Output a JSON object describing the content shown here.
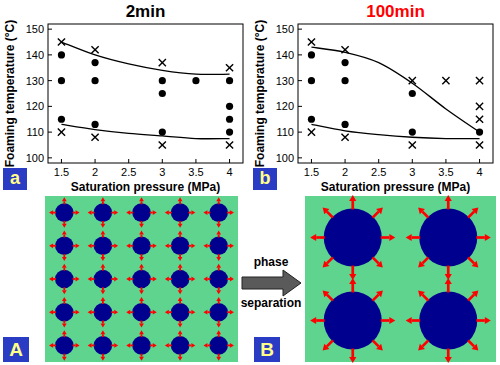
{
  "chart_data": [
    {
      "type": "scatter",
      "title": "2min",
      "panel_label": "a",
      "x_label": "Saturation pressure (MPa)",
      "y_label": "Foaming temperature (°C)",
      "xlim": [
        1.3,
        4.2
      ],
      "ylim": [
        98,
        152
      ],
      "xticks": [
        1.5,
        2,
        2.5,
        3,
        3.5,
        4
      ],
      "yticks": [
        100,
        110,
        120,
        130,
        140,
        150
      ],
      "series": [
        {
          "marker": "circle",
          "color": "#000000",
          "x": [
            1.5,
            1.5,
            1.5,
            2,
            2,
            2,
            3,
            3,
            3,
            3.5,
            4,
            4,
            4,
            4
          ],
          "values": [
            140,
            130,
            115,
            137,
            130,
            113,
            130,
            125,
            110,
            130,
            130,
            120,
            115,
            110
          ]
        },
        {
          "marker": "cross",
          "color": "#000000",
          "x": [
            1.5,
            1.5,
            2,
            2,
            3,
            3,
            4,
            4
          ],
          "values": [
            145,
            110,
            142,
            108,
            137,
            105,
            135,
            105
          ]
        },
        {
          "type": "line",
          "line_style": "solid",
          "color": "#000000",
          "x": [
            1.5,
            2,
            2.5,
            3,
            3.5,
            4
          ],
          "values": [
            145,
            140,
            136.5,
            134,
            132.5,
            132.5
          ]
        },
        {
          "type": "line",
          "line_style": "solid",
          "color": "#000000",
          "x": [
            1.5,
            2,
            2.5,
            3,
            3.5,
            4
          ],
          "values": [
            113,
            111,
            109.5,
            108.5,
            107.5,
            107.5
          ]
        }
      ]
    },
    {
      "type": "scatter",
      "title": "100min",
      "panel_label": "b",
      "x_label": "Saturation pressure (MPa)",
      "y_label": "Foaming temperature (°C)",
      "xlim": [
        1.3,
        4.2
      ],
      "ylim": [
        98,
        152
      ],
      "xticks": [
        1.5,
        2,
        2.5,
        3,
        3.5,
        4
      ],
      "yticks": [
        100,
        110,
        120,
        130,
        140,
        150
      ],
      "series": [
        {
          "marker": "circle",
          "color": "#000000",
          "x": [
            1.5,
            1.5,
            1.5,
            2,
            2,
            2,
            3,
            3,
            4
          ],
          "values": [
            140,
            130,
            115,
            137,
            130,
            113,
            125,
            110,
            110
          ]
        },
        {
          "marker": "cross",
          "color": "#000000",
          "x": [
            1.5,
            1.5,
            2,
            2,
            3,
            3,
            3.5,
            4,
            4,
            4,
            4
          ],
          "values": [
            145,
            110,
            142,
            108,
            130,
            105,
            130,
            130,
            120,
            115,
            105
          ]
        },
        {
          "type": "line",
          "line_style": "solid",
          "color": "#000000",
          "x": [
            1.5,
            2,
            2.5,
            3,
            3.5,
            4
          ],
          "values": [
            143,
            141,
            137,
            129,
            119,
            110
          ]
        },
        {
          "type": "line",
          "line_style": "solid",
          "color": "#000000",
          "x": [
            1.5,
            2,
            2.5,
            3,
            3.5,
            4
          ],
          "values": [
            113,
            110.5,
            109,
            108,
            107.5,
            107.5
          ]
        }
      ]
    }
  ],
  "diagram": {
    "panels": [
      {
        "label": "A",
        "rows": 5,
        "columns": 5
      },
      {
        "label": "B",
        "rows": 2,
        "columns": 2
      }
    ],
    "arrow_text": [
      "phase",
      "separation"
    ]
  }
}
